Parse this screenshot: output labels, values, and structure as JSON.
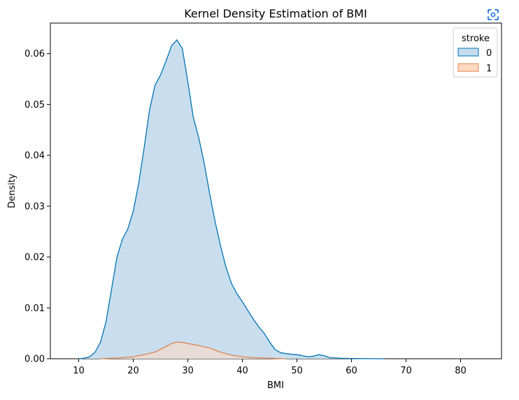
{
  "chart_data": {
    "type": "area",
    "title": "Kernel Density Estimation of BMI",
    "xlabel": "BMI",
    "ylabel": "Density",
    "xlim": [
      4.8,
      87.5
    ],
    "ylim": [
      0,
      0.066
    ],
    "xticks": [
      10,
      20,
      30,
      40,
      50,
      60,
      70,
      80
    ],
    "yticks": [
      0.0,
      0.01,
      0.02,
      0.03,
      0.04,
      0.05,
      0.06
    ],
    "ytick_labels": [
      "0.00",
      "0.01",
      "0.02",
      "0.03",
      "0.04",
      "0.05",
      "0.06"
    ],
    "grid": false,
    "legend": {
      "title": "stroke",
      "position": "top-right"
    },
    "series": [
      {
        "name": "0",
        "color": "#0072b2",
        "fill": "#c5dcee",
        "points": [
          [
            10,
            0
          ],
          [
            11,
            0.0001
          ],
          [
            12,
            0.0004
          ],
          [
            13,
            0.0013
          ],
          [
            14,
            0.0033
          ],
          [
            15,
            0.0073
          ],
          [
            16,
            0.0136
          ],
          [
            17,
            0.02
          ],
          [
            18,
            0.0235
          ],
          [
            19,
            0.0255
          ],
          [
            20,
            0.029
          ],
          [
            21,
            0.0345
          ],
          [
            22,
            0.0415
          ],
          [
            23,
            0.049
          ],
          [
            24,
            0.0538
          ],
          [
            25,
            0.0558
          ],
          [
            26,
            0.0585
          ],
          [
            27,
            0.0615
          ],
          [
            28,
            0.0627
          ],
          [
            29,
            0.061
          ],
          [
            30,
            0.0545
          ],
          [
            31,
            0.0475
          ],
          [
            32,
            0.0435
          ],
          [
            33,
            0.0385
          ],
          [
            34,
            0.0325
          ],
          [
            35,
            0.027
          ],
          [
            36,
            0.0222
          ],
          [
            37,
            0.018
          ],
          [
            38,
            0.0148
          ],
          [
            39,
            0.0128
          ],
          [
            40,
            0.0112
          ],
          [
            41,
            0.0095
          ],
          [
            42,
            0.0078
          ],
          [
            43,
            0.0063
          ],
          [
            44,
            0.005
          ],
          [
            45,
            0.0033
          ],
          [
            46,
            0.0018
          ],
          [
            47,
            0.0012
          ],
          [
            48,
            0.001
          ],
          [
            49,
            0.0009
          ],
          [
            50,
            0.0008
          ],
          [
            51,
            0.0006
          ],
          [
            52,
            0.0004
          ],
          [
            53,
            0.0005
          ],
          [
            54,
            0.0008
          ],
          [
            55,
            0.0006
          ],
          [
            56,
            0.0002
          ],
          [
            58,
            0.0001
          ],
          [
            60,
            5e-05
          ],
          [
            62,
            3e-05
          ],
          [
            66,
            0
          ]
        ]
      },
      {
        "name": "1",
        "color": "#dd8452",
        "fill": "#ffd8bf",
        "points": [
          [
            14,
            0
          ],
          [
            16,
            0.0001
          ],
          [
            18,
            0.0002
          ],
          [
            20,
            0.0004
          ],
          [
            22,
            0.0008
          ],
          [
            24,
            0.0013
          ],
          [
            26,
            0.0024
          ],
          [
            27,
            0.003
          ],
          [
            28,
            0.0033
          ],
          [
            29,
            0.0032
          ],
          [
            30,
            0.003
          ],
          [
            32,
            0.0026
          ],
          [
            34,
            0.0021
          ],
          [
            35,
            0.0017
          ],
          [
            36,
            0.0013
          ],
          [
            38,
            0.0007
          ],
          [
            40,
            0.0004
          ],
          [
            42,
            0.0002
          ],
          [
            45,
            0.0001
          ],
          [
            48,
            0
          ]
        ]
      }
    ]
  },
  "toolbar": {
    "icon": "focus-icon"
  }
}
